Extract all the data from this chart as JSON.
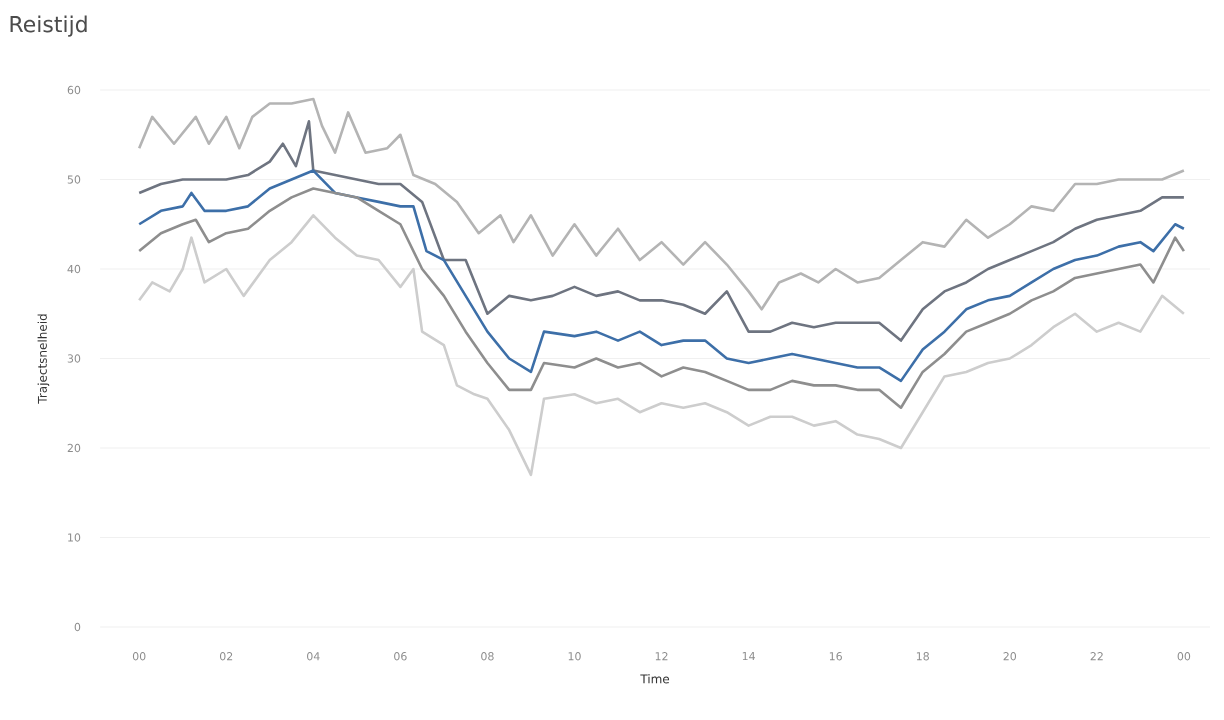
{
  "chart_data": {
    "type": "line",
    "title": "Reistijd",
    "xlabel": "Time",
    "ylabel": "Trajectsnelheid",
    "xlim": [
      -0.9,
      24.6
    ],
    "ylim": [
      0,
      60
    ],
    "xticks": [
      {
        "value": 0,
        "label": "00"
      },
      {
        "value": 2,
        "label": "02"
      },
      {
        "value": 4,
        "label": "04"
      },
      {
        "value": 6,
        "label": "06"
      },
      {
        "value": 8,
        "label": "08"
      },
      {
        "value": 10,
        "label": "10"
      },
      {
        "value": 12,
        "label": "12"
      },
      {
        "value": 14,
        "label": "14"
      },
      {
        "value": 16,
        "label": "16"
      },
      {
        "value": 18,
        "label": "18"
      },
      {
        "value": 20,
        "label": "20"
      },
      {
        "value": 22,
        "label": "22"
      },
      {
        "value": 24,
        "label": "00"
      }
    ],
    "yticks": [
      0,
      10,
      20,
      30,
      40,
      50,
      60
    ],
    "grid": "y",
    "marker": "none",
    "line_style": "solid",
    "series": [
      {
        "color": "#b4b4b4",
        "x": [
          0,
          0.3,
          0.8,
          1.3,
          1.6,
          2,
          2.3,
          2.6,
          3,
          3.5,
          4,
          4.2,
          4.5,
          4.8,
          5.2,
          5.7,
          6,
          6.3,
          6.8,
          7.3,
          7.8,
          8.3,
          8.6,
          9,
          9.5,
          10,
          10.5,
          11,
          11.5,
          12,
          12.5,
          13,
          13.5,
          14,
          14.3,
          14.7,
          15.2,
          15.6,
          16,
          16.5,
          17,
          17.5,
          18,
          18.5,
          19,
          19.5,
          20,
          20.5,
          21,
          21.5,
          22,
          22.5,
          23,
          23.5,
          24
        ],
        "values": [
          53.5,
          57,
          54,
          57,
          54,
          57,
          53.5,
          57,
          58.5,
          58.5,
          59,
          56,
          53,
          57.5,
          53,
          53.5,
          55,
          50.5,
          49.5,
          47.5,
          44,
          46,
          43,
          46,
          41.5,
          45,
          41.5,
          44.5,
          41,
          43,
          40.5,
          43,
          40.5,
          37.5,
          35.5,
          38.5,
          39.5,
          38.5,
          40,
          38.5,
          39,
          41,
          43,
          42.5,
          45.5,
          43.5,
          45,
          47,
          46.5,
          49.5,
          49.5,
          50,
          50,
          50,
          51
        ]
      },
      {
        "color": "#6e7480",
        "x": [
          0,
          0.5,
          1,
          1.5,
          2,
          2.5,
          3,
          3.3,
          3.6,
          3.9,
          4,
          4.5,
          5,
          5.5,
          6,
          6.5,
          7,
          7.5,
          8,
          8.5,
          9,
          9.5,
          10,
          10.5,
          11,
          11.5,
          12,
          12.5,
          13,
          13.5,
          14,
          14.5,
          15,
          15.5,
          16,
          16.5,
          17,
          17.5,
          18,
          18.5,
          19,
          19.5,
          20,
          20.5,
          21,
          21.5,
          22,
          22.5,
          23,
          23.5,
          24
        ],
        "values": [
          48.5,
          49.5,
          50,
          50,
          50,
          50.5,
          52,
          54,
          51.5,
          56.5,
          51,
          50.5,
          50,
          49.5,
          49.5,
          47.5,
          41,
          41,
          35,
          37,
          36.5,
          37,
          38,
          37,
          37.5,
          36.5,
          36.5,
          36,
          35,
          37.5,
          33,
          33,
          34,
          33.5,
          34,
          34,
          34,
          32,
          35.5,
          37.5,
          38.5,
          40,
          41,
          42,
          43,
          44.5,
          45.5,
          46,
          46.5,
          48,
          48
        ]
      },
      {
        "color": "#3d6fa8",
        "x": [
          0,
          0.5,
          1,
          1.2,
          1.5,
          2,
          2.5,
          3,
          3.5,
          4,
          4.5,
          5,
          5.5,
          6,
          6.3,
          6.6,
          7,
          7.5,
          8,
          8.5,
          9,
          9.3,
          10,
          10.5,
          11,
          11.5,
          12,
          12.5,
          13,
          13.5,
          14,
          14.5,
          15,
          15.5,
          16,
          16.5,
          17,
          17.5,
          18,
          18.5,
          19,
          19.5,
          20,
          20.5,
          21,
          21.5,
          22,
          22.5,
          23,
          23.3,
          23.8,
          24
        ],
        "values": [
          45,
          46.5,
          47,
          48.5,
          46.5,
          46.5,
          47,
          49,
          50,
          51,
          48.5,
          48,
          47.5,
          47,
          47,
          42,
          41,
          37,
          33,
          30,
          28.5,
          33,
          32.5,
          33,
          32,
          33,
          31.5,
          32,
          32,
          30,
          29.5,
          30,
          30.5,
          30,
          29.5,
          29,
          29,
          27.5,
          31,
          33,
          35.5,
          36.5,
          37,
          38.5,
          40,
          41,
          41.5,
          42.5,
          43,
          42,
          45,
          44.5
        ]
      },
      {
        "color": "#8e8e8e",
        "x": [
          0,
          0.5,
          1,
          1.3,
          1.6,
          2,
          2.5,
          3,
          3.5,
          4,
          4.5,
          5,
          5.5,
          6,
          6.5,
          7,
          7.5,
          8,
          8.5,
          9,
          9.3,
          10,
          10.5,
          11,
          11.5,
          12,
          12.5,
          13,
          13.5,
          14,
          14.5,
          15,
          15.5,
          16,
          16.5,
          17,
          17.5,
          18,
          18.5,
          19,
          19.5,
          20,
          20.5,
          21,
          21.5,
          22,
          22.5,
          23,
          23.3,
          23.8,
          24
        ],
        "values": [
          42,
          44,
          45,
          45.5,
          43,
          44,
          44.5,
          46.5,
          48,
          49,
          48.5,
          48,
          46.5,
          45,
          40,
          37,
          33,
          29.5,
          26.5,
          26.5,
          29.5,
          29,
          30,
          29,
          29.5,
          28,
          29,
          28.5,
          27.5,
          26.5,
          26.5,
          27.5,
          27,
          27,
          26.5,
          26.5,
          24.5,
          28.5,
          30.5,
          33,
          34,
          35,
          36.5,
          37.5,
          39,
          39.5,
          40,
          40.5,
          38.5,
          43.5,
          42
        ]
      },
      {
        "color": "#cdcdcd",
        "x": [
          0,
          0.3,
          0.7,
          1,
          1.2,
          1.5,
          2,
          2.4,
          3,
          3.5,
          4,
          4.5,
          5,
          5.5,
          6,
          6.3,
          6.5,
          7,
          7.3,
          7.7,
          8,
          8.5,
          9,
          9.3,
          10,
          10.5,
          11,
          11.5,
          12,
          12.5,
          13,
          13.5,
          14,
          14.5,
          15,
          15.5,
          16,
          16.5,
          17,
          17.5,
          18,
          18.5,
          19,
          19.5,
          20,
          20.5,
          21,
          21.5,
          22,
          22.5,
          23,
          23.5,
          24
        ],
        "values": [
          36.5,
          38.5,
          37.5,
          40,
          43.5,
          38.5,
          40,
          37,
          41,
          43,
          46,
          43.5,
          41.5,
          41,
          38,
          40,
          33,
          31.5,
          27,
          26,
          25.5,
          22,
          17,
          25.5,
          26,
          25,
          25.5,
          24,
          25,
          24.5,
          25,
          24,
          22.5,
          23.5,
          23.5,
          22.5,
          23,
          21.5,
          21,
          20,
          24,
          28,
          28.5,
          29.5,
          30,
          31.5,
          33.5,
          35,
          33,
          34,
          33,
          37,
          35
        ]
      }
    ]
  }
}
